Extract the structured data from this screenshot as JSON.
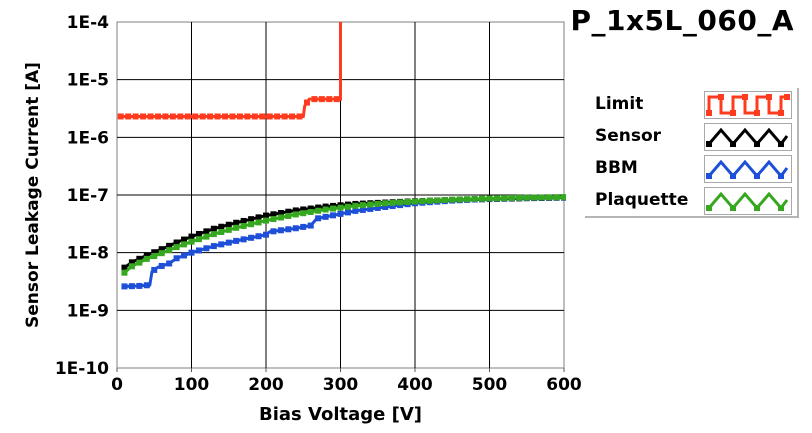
{
  "chart_data": {
    "type": "line",
    "title": "P_1x5L_060_A",
    "xlabel": "Bias Voltage [V]",
    "ylabel": "Sensor Leakage Current [A]",
    "xlim": [
      0,
      600
    ],
    "ylim_log10": [
      -10,
      -4
    ],
    "yscale": "log",
    "grid": true,
    "legend_position": "right",
    "x_ticks": [
      "0",
      "100",
      "200",
      "300",
      "400",
      "500",
      "600"
    ],
    "y_ticks": [
      "1E-10",
      "1E-9",
      "1E-8",
      "1E-7",
      "1E-6",
      "1E-5",
      "1E-4"
    ],
    "series": [
      {
        "name": "Limit",
        "color": "#ff3b1f",
        "x": [
          5,
          250,
          252,
          258,
          300,
          300
        ],
        "y": [
          2.3e-06,
          2.3e-06,
          3.5e-06,
          4.6e-06,
          4.6e-06,
          0.0001
        ]
      },
      {
        "name": "Sensor",
        "color": "#000000",
        "x": [
          10,
          20,
          40,
          60,
          80,
          100,
          130,
          160,
          200,
          240,
          280,
          320,
          360,
          400,
          450,
          500,
          550,
          600
        ],
        "y": [
          5.5e-09,
          6.8e-09,
          9e-09,
          1.15e-08,
          1.5e-08,
          1.9e-08,
          2.6e-08,
          3.3e-08,
          4.4e-08,
          5.4e-08,
          6.3e-08,
          7e-08,
          7.4e-08,
          7.8e-08,
          8.2e-08,
          8.5e-08,
          8.8e-08,
          9e-08
        ]
      },
      {
        "name": "BBM",
        "color": "#1e4fd8",
        "x": [
          10,
          30,
          44,
          47,
          55,
          70,
          80,
          100,
          130,
          160,
          200,
          205,
          240,
          260,
          268,
          300,
          320,
          360,
          400,
          450,
          500,
          550,
          600
        ],
        "y": [
          2.6e-09,
          2.65e-09,
          2.75e-09,
          4.7e-09,
          5.6e-09,
          6.5e-09,
          8e-09,
          1e-08,
          1.3e-08,
          1.6e-08,
          2.05e-08,
          2.3e-08,
          2.65e-08,
          2.95e-08,
          3.9e-08,
          4.7e-08,
          5.3e-08,
          6.2e-08,
          7.2e-08,
          8e-08,
          8.6e-08,
          8.9e-08,
          9.1e-08
        ]
      },
      {
        "name": "Plaquette",
        "color": "#36a81f",
        "x": [
          10,
          20,
          40,
          60,
          80,
          100,
          130,
          160,
          200,
          240,
          280,
          320,
          360,
          400,
          450,
          500,
          550,
          600
        ],
        "y": [
          4.5e-09,
          5.8e-09,
          7.8e-09,
          9.8e-09,
          1.25e-08,
          1.55e-08,
          2.1e-08,
          2.7e-08,
          3.6e-08,
          4.6e-08,
          5.6e-08,
          6.5e-08,
          7.2e-08,
          7.7e-08,
          8.3e-08,
          8.7e-08,
          9e-08,
          9.2e-08
        ]
      }
    ]
  }
}
